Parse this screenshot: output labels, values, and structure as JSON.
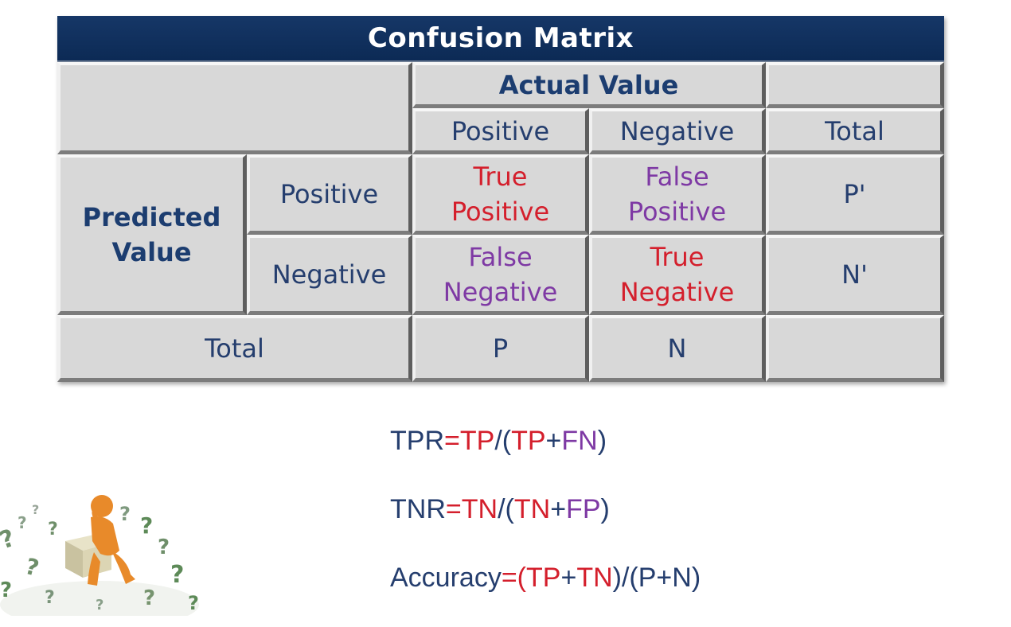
{
  "matrix": {
    "title": "Confusion Matrix",
    "actual_header": "Actual Value",
    "predicted_header": [
      "Predicted",
      "Value"
    ],
    "col_positive": "Positive",
    "col_negative": "Negative",
    "col_total": "Total",
    "row_positive": "Positive",
    "row_negative": "Negative",
    "row_total": "Total",
    "tp": [
      "True",
      "Positive"
    ],
    "fp": [
      "False",
      "Positive"
    ],
    "fn": [
      "False",
      "Negative"
    ],
    "tn": [
      "True",
      "Negative"
    ],
    "p_prime": "P'",
    "n_prime": "N'",
    "p_total": "P",
    "n_total": "N"
  },
  "formulas": {
    "tpr": {
      "label": "TPR",
      "eq": "=",
      "tp": "TP",
      "slash": "/(",
      "tp2": "TP",
      "plus": "+",
      "fn": "FN",
      "close": ")"
    },
    "tnr": {
      "label": "TNR",
      "eq": "=",
      "tn": "TN",
      "slash": "/(",
      "tn2": "TN",
      "plus": "+",
      "fp": "FP",
      "close": ")"
    },
    "acc": {
      "label": "Accuracy",
      "eq": "=(",
      "tp": "TP",
      "plus": "+",
      "tn": "TN",
      "mid": ")/(P+N)"
    }
  },
  "colors": {
    "title_bar": "#0c2a55",
    "true_values": "#d41f2c",
    "false_values": "#7e39a4",
    "labels": "#253e6e"
  },
  "illustration": {
    "icon": "thinking-figure-question-marks-icon"
  }
}
